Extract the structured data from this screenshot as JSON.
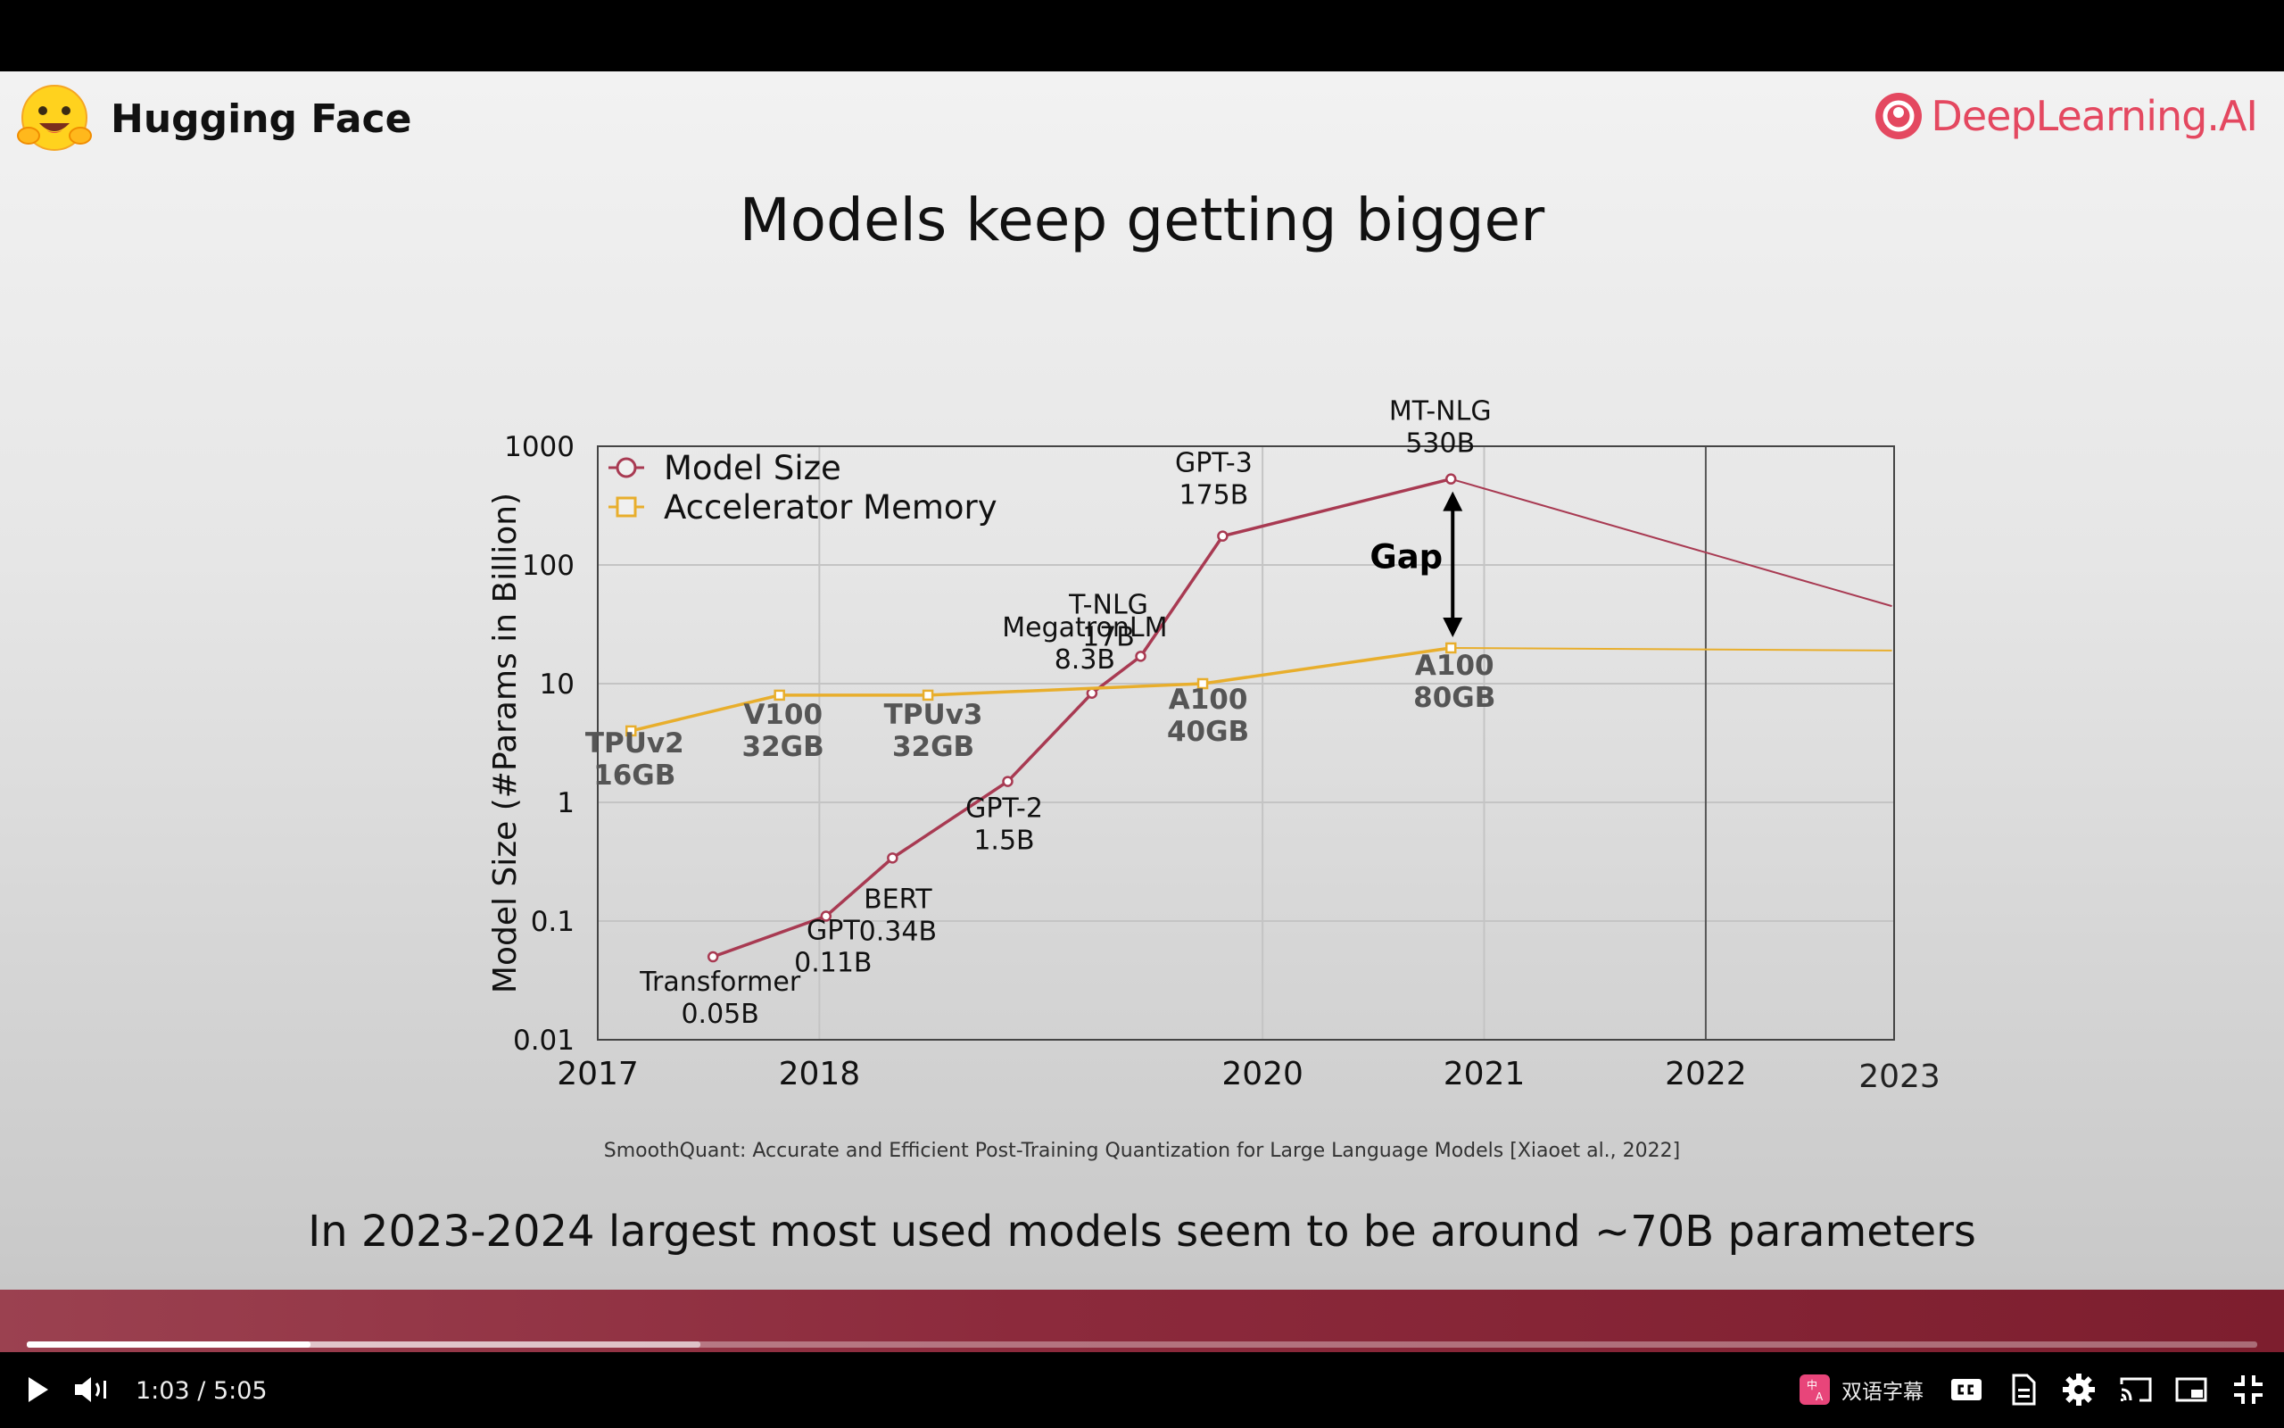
{
  "slide": {
    "brand_left": "Hugging Face",
    "brand_right": "DeepLearning.AI",
    "title": "Models keep getting bigger",
    "citation": "SmoothQuant: Accurate and Efficient Post-Training Quantization for Large Language Models [Xiaoet al., 2022]",
    "caption": "In 2023-2024 largest most used models seem to be around ~70B parameters"
  },
  "chart_data": {
    "type": "line",
    "ylabel": "Model Size (#Params in Billion)",
    "yscale": "log",
    "ylim": [
      0.01,
      1000
    ],
    "y_ticks": [
      0.01,
      0.1,
      1,
      10,
      100,
      1000
    ],
    "y_tick_labels": [
      "0.01",
      "0.1",
      "1",
      "10",
      "100",
      "1000"
    ],
    "xlim": [
      2017,
      2022.85
    ],
    "x_ticks": [
      2017,
      2018,
      2020,
      2021,
      2022
    ],
    "x_tick_labels": [
      "2017",
      "2018",
      "2020",
      "2021",
      "2022"
    ],
    "x_extra_label": "2023",
    "grid": true,
    "legend_position": "top-left",
    "series": [
      {
        "name": "Model Size",
        "color": "#a83a52",
        "marker": "circle",
        "points": [
          {
            "x": 2017.52,
            "y": 0.05,
            "label": [
              "Transformer",
              "0.05B"
            ]
          },
          {
            "x": 2018.03,
            "y": 0.11,
            "label": [
              "GPT",
              "0.11B"
            ]
          },
          {
            "x": 2018.33,
            "y": 0.34,
            "label": [
              "BERT",
              "0.34B"
            ]
          },
          {
            "x": 2018.85,
            "y": 1.5,
            "label": [
              "GPT-2",
              "1.5B"
            ]
          },
          {
            "x": 2019.23,
            "y": 8.3,
            "label": [
              "MegatronLM",
              "8.3B"
            ]
          },
          {
            "x": 2019.45,
            "y": 17,
            "label": [
              "T-NLG",
              "17B"
            ]
          },
          {
            "x": 2019.82,
            "y": 175,
            "label": [
              "GPT-3",
              "175B"
            ]
          },
          {
            "x": 2020.85,
            "y": 530,
            "label": [
              "MT-NLG",
              "530B"
            ]
          }
        ],
        "trend_to": {
          "x": 2022.84,
          "y": 45
        }
      },
      {
        "name": "Accelerator Memory",
        "color": "#e8ae2c",
        "marker": "square",
        "points": [
          {
            "x": 2017.15,
            "y": 4,
            "label": [
              "TPUv2",
              "16GB"
            ]
          },
          {
            "x": 2017.82,
            "y": 8,
            "label": [
              "V100",
              "32GB"
            ]
          },
          {
            "x": 2018.49,
            "y": 8,
            "label": [
              "TPUv3",
              "32GB"
            ]
          },
          {
            "x": 2019.73,
            "y": 10,
            "label": [
              "A100",
              "40GB"
            ]
          },
          {
            "x": 2020.85,
            "y": 20,
            "label": [
              "A100",
              "80GB"
            ]
          }
        ],
        "trend_to": {
          "x": 2022.84,
          "y": 19
        }
      }
    ],
    "annotation": {
      "text": "Gap",
      "x": 2020.85,
      "y_top": 530,
      "y_bottom": 20
    }
  },
  "player": {
    "current_time": "1:03",
    "separator": "/",
    "duration": "5:05",
    "played_fraction": 0.127,
    "buffered_fraction": 0.302,
    "dual_subtitle_label": "双语字幕",
    "icons": [
      "play-icon",
      "volume-icon",
      "dual-subtitle-icon",
      "cc-icon",
      "transcript-icon",
      "gear-icon",
      "cast-icon",
      "miniplayer-icon",
      "fullscreen-icon"
    ]
  }
}
